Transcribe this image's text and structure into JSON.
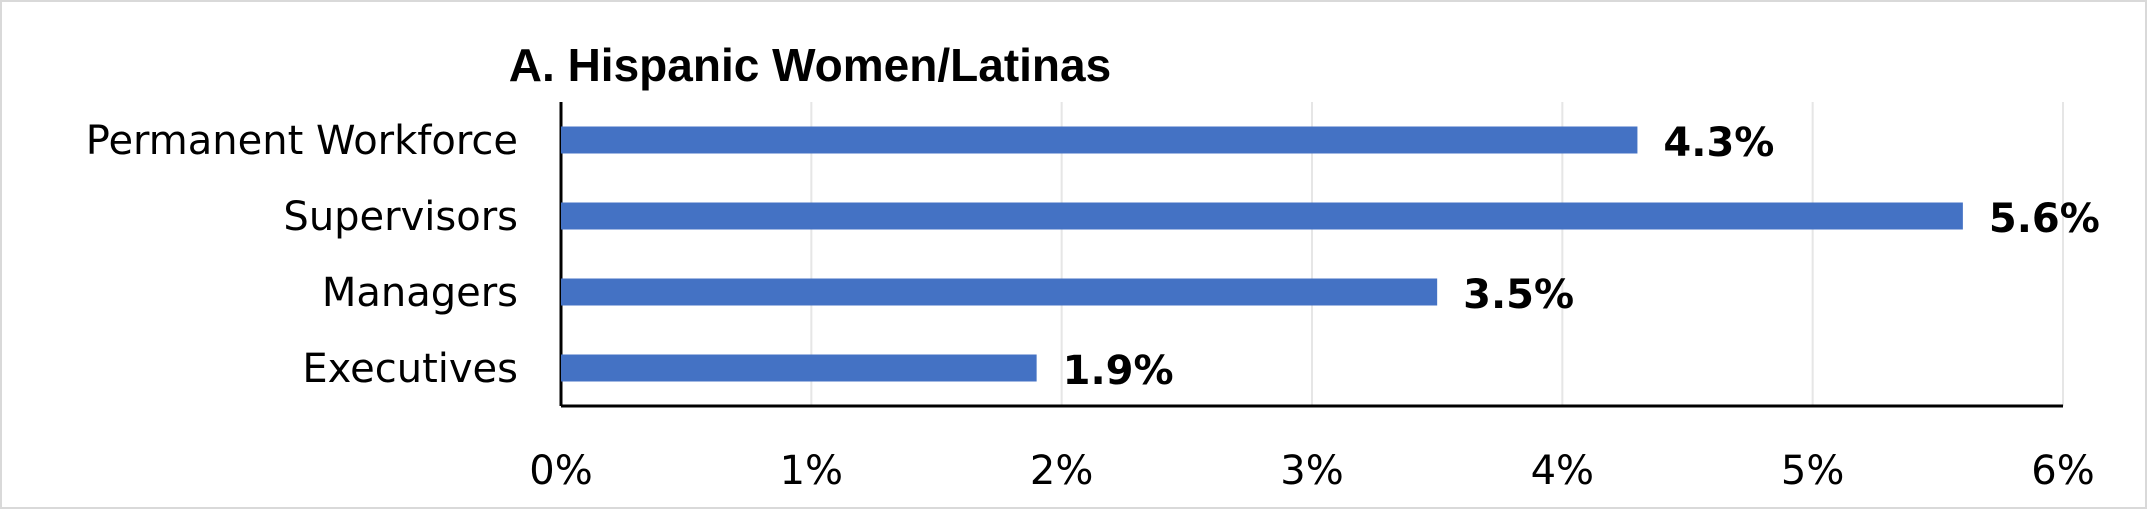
{
  "chart_data": {
    "type": "bar",
    "orientation": "horizontal",
    "title": "A. Hispanic Women/Latinas",
    "categories": [
      "Permanent Workforce",
      "Supervisors",
      "Managers",
      "Executives"
    ],
    "series": [
      {
        "values": [
          4.3,
          5.6,
          3.5,
          1.9
        ]
      }
    ],
    "data_labels": [
      "4.3%",
      "5.6%",
      "3.5%",
      "1.9%"
    ],
    "x_ticks": [
      "0%",
      "1%",
      "2%",
      "3%",
      "4%",
      "5%",
      "6%"
    ],
    "xlim": [
      0,
      6
    ],
    "xlabel": "",
    "ylabel": "",
    "grid": "vertical",
    "legend": "none",
    "bar_color": "#4472c4",
    "gridline_color": "#e6e6e6"
  }
}
